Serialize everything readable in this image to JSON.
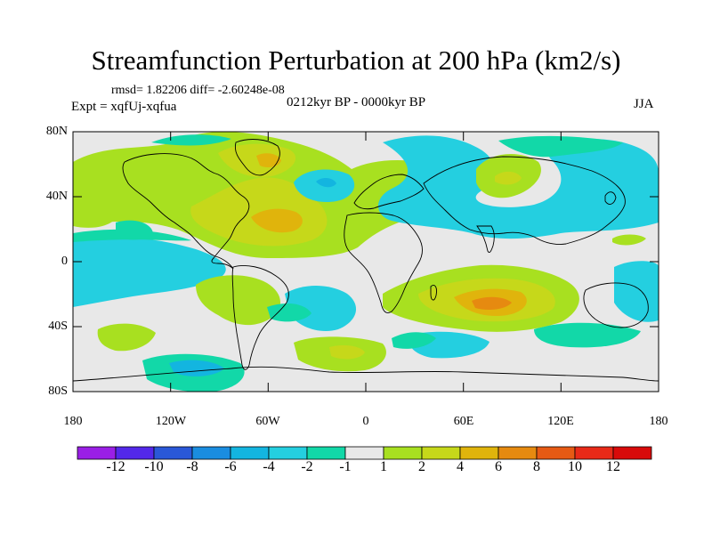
{
  "title": "Streamfunction Perturbation at 200 hPa (km2/s)",
  "stats": "rmsd= 1.82206 diff= -2.60248e-08",
  "experiment": "Expt = xqfUj-xqfua",
  "period": "0212kyr BP - 0000kyr BP",
  "season": "JJA",
  "lat_labels": [
    "80N",
    "40N",
    "0",
    "40S",
    "80S"
  ],
  "lon_labels": [
    "180",
    "120W",
    "60W",
    "0",
    "60E",
    "120E",
    "180"
  ],
  "colorbar": {
    "labels": [
      "-12",
      "-10",
      "-8",
      "-6",
      "-4",
      "-2",
      "-1",
      "1",
      "2",
      "4",
      "6",
      "8",
      "10",
      "12"
    ],
    "colors": [
      "#9a1fe6",
      "#5328ea",
      "#2a58d8",
      "#1a8de0",
      "#13b5e0",
      "#24cfe0",
      "#12d8a8",
      "#e8e8e8",
      "#a8e020",
      "#c6d81a",
      "#e0b40c",
      "#e68a10",
      "#e65a14",
      "#e82a18",
      "#d80a0a"
    ]
  },
  "palette": {
    "land_line": "#000000",
    "neutral": "#e8e8e8"
  }
}
